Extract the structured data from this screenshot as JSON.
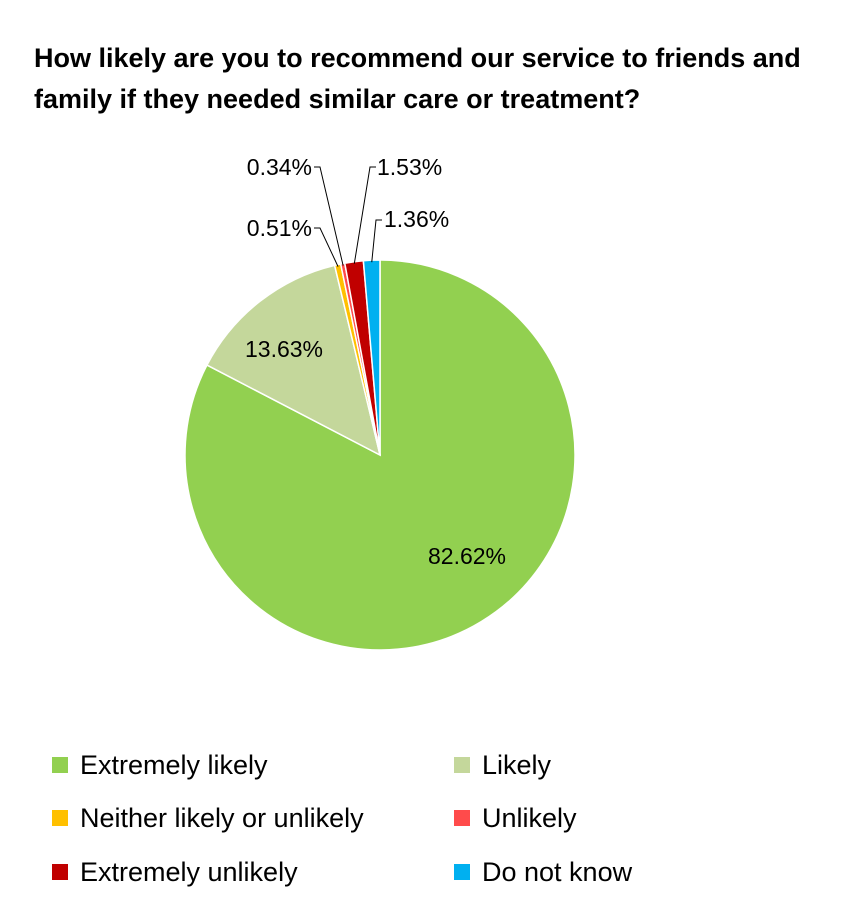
{
  "chart_data": {
    "type": "pie",
    "title": "How likely are you to recommend our service to friends and family if they needed similar care or treatment?",
    "slices": [
      {
        "label": "Extremely likely",
        "value": 82.62,
        "display": "82.62%",
        "color": "#92D050"
      },
      {
        "label": "Likely",
        "value": 13.63,
        "display": "13.63%",
        "color": "#C4D79B"
      },
      {
        "label": "Neither likely or unlikely",
        "value": 0.51,
        "display": "0.51%",
        "color": "#FFC000"
      },
      {
        "label": "Unlikely",
        "value": 0.34,
        "display": "0.34%",
        "color": "#FF4B4B"
      },
      {
        "label": "Extremely unlikely",
        "value": 1.53,
        "display": "1.53%",
        "color": "#C00000"
      },
      {
        "label": "Do not know",
        "value": 1.36,
        "display": "1.36%",
        "color": "#00B0F0"
      }
    ],
    "start_angle": "12 o'clock",
    "direction": "clockwise",
    "legend_position": "bottom"
  }
}
